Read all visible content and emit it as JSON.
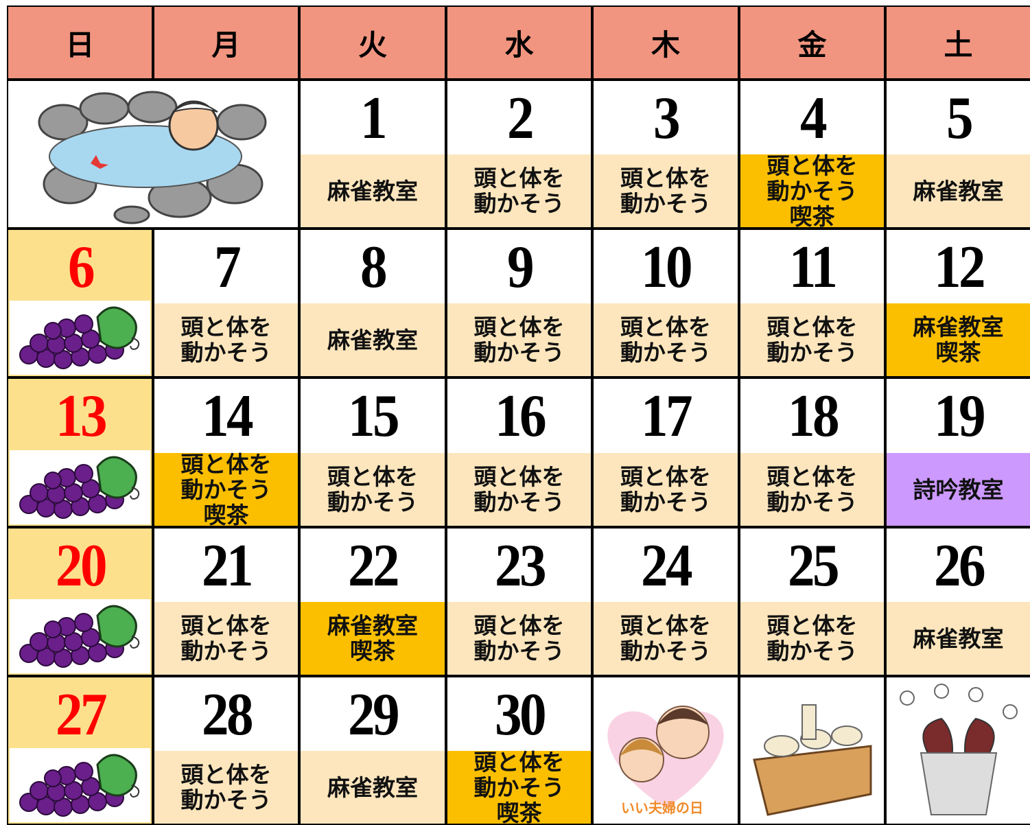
{
  "header": {
    "weekdays": [
      "日",
      "月",
      "火",
      "水",
      "木",
      "金",
      "土"
    ]
  },
  "weeks": [
    [
      null,
      null,
      {
        "day": 1,
        "events": [
          "麻雀教室"
        ],
        "color": "#fde6bd"
      },
      {
        "day": 2,
        "events": [
          "頭と体を",
          "動かそう"
        ],
        "color": "#fde6bd"
      },
      {
        "day": 3,
        "events": [
          "頭と体を",
          "動かそう"
        ],
        "color": "#fde6bd"
      },
      {
        "day": 4,
        "events": [
          "頭と体を",
          "動かそう",
          "喫茶"
        ],
        "color": "#fbbf00"
      },
      {
        "day": 5,
        "events": [
          "麻雀教室"
        ],
        "color": "#fde6bd"
      }
    ],
    [
      {
        "day": 6
      },
      {
        "day": 7,
        "events": [
          "頭と体を",
          "動かそう"
        ],
        "color": "#fde6bd"
      },
      {
        "day": 8,
        "events": [
          "麻雀教室"
        ],
        "color": "#fde6bd"
      },
      {
        "day": 9,
        "events": [
          "頭と体を",
          "動かそう"
        ],
        "color": "#fde6bd"
      },
      {
        "day": 10,
        "events": [
          "頭と体を",
          "動かそう"
        ],
        "color": "#fde6bd"
      },
      {
        "day": 11,
        "events": [
          "頭と体を",
          "動かそう"
        ],
        "color": "#fde6bd"
      },
      {
        "day": 12,
        "events": [
          "麻雀教室",
          "喫茶"
        ],
        "color": "#fbbf00"
      }
    ],
    [
      {
        "day": 13
      },
      {
        "day": 14,
        "events": [
          "頭と体を",
          "動かそう",
          "喫茶"
        ],
        "color": "#fbbf00"
      },
      {
        "day": 15,
        "events": [
          "頭と体を",
          "動かそう"
        ],
        "color": "#fde6bd"
      },
      {
        "day": 16,
        "events": [
          "頭と体を",
          "動かそう"
        ],
        "color": "#fde6bd"
      },
      {
        "day": 17,
        "events": [
          "頭と体を",
          "動かそう"
        ],
        "color": "#fde6bd"
      },
      {
        "day": 18,
        "events": [
          "頭と体を",
          "動かそう"
        ],
        "color": "#fde6bd"
      },
      {
        "day": 19,
        "events": [
          "詩吟教室"
        ],
        "color": "#cc99ff"
      }
    ],
    [
      {
        "day": 20
      },
      {
        "day": 21,
        "events": [
          "頭と体を",
          "動かそう"
        ],
        "color": "#fde6bd"
      },
      {
        "day": 22,
        "events": [
          "麻雀教室",
          "喫茶"
        ],
        "color": "#fbbf00"
      },
      {
        "day": 23,
        "events": [
          "頭と体を",
          "動かそう"
        ],
        "color": "#fde6bd"
      },
      {
        "day": 24,
        "events": [
          "頭と体を",
          "動かそう"
        ],
        "color": "#fde6bd"
      },
      {
        "day": 25,
        "events": [
          "頭と体を",
          "動かそう"
        ],
        "color": "#fde6bd"
      },
      {
        "day": 26,
        "events": [
          "麻雀教室"
        ],
        "color": "#fde6bd"
      }
    ],
    [
      {
        "day": 27
      },
      {
        "day": 28,
        "events": [
          "頭と体を",
          "動かそう"
        ],
        "color": "#fde6bd"
      },
      {
        "day": 29,
        "events": [
          "麻雀教室"
        ],
        "color": "#fde6bd"
      },
      {
        "day": 30,
        "events": [
          "頭と体を",
          "動かそう",
          "喫茶"
        ],
        "color": "#fbbf00"
      },
      null,
      null,
      null
    ]
  ],
  "illustrations": {
    "couple": "いい夫婦の日"
  }
}
